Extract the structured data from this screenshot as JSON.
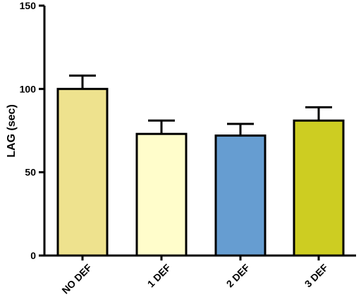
{
  "chart_data": {
    "type": "bar",
    "title": "",
    "xlabel": "",
    "ylabel": "LAG (sec)",
    "ylim": [
      0,
      150
    ],
    "yticks": [
      0,
      50,
      100,
      150
    ],
    "grid": false,
    "categories": [
      "NO DEF",
      "1 DEF",
      "2 DEF",
      "3 DEF"
    ],
    "values": [
      100,
      73,
      72,
      81
    ],
    "error_upper": [
      108,
      81,
      79,
      89
    ],
    "colors": [
      "#EEE28E",
      "#FFFDCB",
      "#669DD1",
      "#CDCD22"
    ]
  }
}
